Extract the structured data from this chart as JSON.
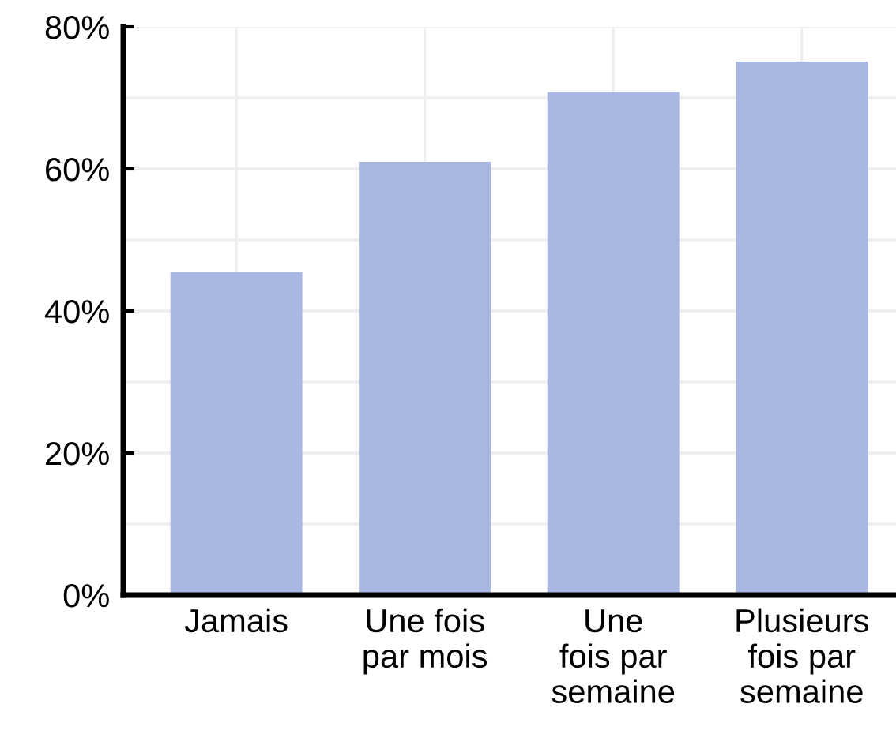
{
  "chart_data": {
    "type": "bar",
    "categories": [
      "Jamais",
      "Une fois\npar mois",
      "Une\nfois par\nsemaine",
      "Plusieurs\nfois par\nsemaine"
    ],
    "values": [
      45.5,
      61.0,
      70.8,
      75.1
    ],
    "color": "#a8b8e2",
    "ylim": [
      0,
      80
    ],
    "yticks": [
      {
        "value": 0,
        "label": "0%"
      },
      {
        "value": 10,
        "label": null
      },
      {
        "value": 20,
        "label": "20%"
      },
      {
        "value": 30,
        "label": null
      },
      {
        "value": 40,
        "label": "40%"
      },
      {
        "value": 50,
        "label": null
      },
      {
        "value": 60,
        "label": "60%"
      },
      {
        "value": 70,
        "label": null
      },
      {
        "value": 80,
        "label": "80%"
      }
    ],
    "grid": true
  }
}
